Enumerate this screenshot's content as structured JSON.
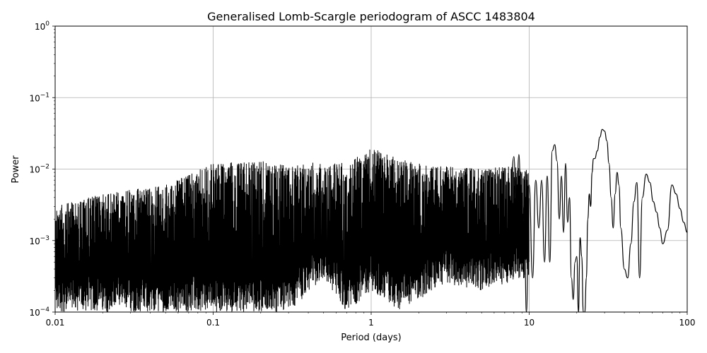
{
  "chart_data": {
    "type": "line",
    "title": "Generalised Lomb-Scargle periodogram of ASCC 1483804",
    "xlabel": "Period (days)",
    "ylabel": "Power",
    "xscale": "log",
    "yscale": "log",
    "xlim": [
      0.01,
      100
    ],
    "ylim": [
      0.0001,
      1
    ],
    "grid": true,
    "x_ticks": [
      {
        "value": 0.01,
        "label": "0.01"
      },
      {
        "value": 0.1,
        "label": "0.1"
      },
      {
        "value": 1,
        "label": "1"
      },
      {
        "value": 10,
        "label": "10"
      },
      {
        "value": 100,
        "label": "100"
      }
    ],
    "y_ticks": [
      {
        "value": 0.0001,
        "base": "10",
        "exp": "−4"
      },
      {
        "value": 0.001,
        "base": "10",
        "exp": "−3"
      },
      {
        "value": 0.01,
        "base": "10",
        "exp": "−2"
      },
      {
        "value": 0.1,
        "base": "10",
        "exp": "−1"
      },
      {
        "value": 1,
        "base": "10",
        "exp": "0"
      }
    ],
    "series": [
      {
        "color": "#000000",
        "noise_envelope": {
          "x": [
            0.01,
            0.02,
            0.05,
            0.1,
            0.2,
            0.3,
            0.5,
            0.7,
            1.0,
            1.5,
            2.0,
            3.0,
            5.0,
            7.0,
            10.0
          ],
          "peak": [
            0.003,
            0.0045,
            0.006,
            0.012,
            0.013,
            0.011,
            0.013,
            0.012,
            0.02,
            0.014,
            0.012,
            0.011,
            0.01,
            0.011,
            0.01
          ],
          "floor": [
            0.0001,
            0.0001,
            0.0001,
            0.0001,
            0.0001,
            0.0001,
            0.0003,
            0.0001,
            0.0002,
            0.0001,
            0.00015,
            0.00025,
            0.0002,
            0.00025,
            0.0003
          ]
        },
        "x": [
          7.5,
          8.0,
          8.3,
          8.6,
          9.0,
          9.3,
          9.6,
          10.0,
          10.5,
          11.0,
          11.5,
          12.0,
          12.5,
          13.0,
          13.5,
          14.0,
          14.5,
          15.0,
          15.5,
          16.0,
          16.5,
          17.0,
          17.5,
          18.0,
          18.5,
          19.0,
          19.5,
          20.0,
          20.5,
          21.0,
          21.5,
          22.0,
          22.5,
          23.0,
          23.5,
          24.0,
          24.5,
          25.0,
          25.5,
          26.0,
          27.0,
          28.0,
          29.0,
          30.0,
          31.0,
          32.0,
          33.0,
          34.0,
          35.0,
          36.0,
          37.0,
          38.0,
          40.0,
          42.0,
          44.0,
          46.0,
          48.0,
          50.0,
          52.0,
          55.0,
          58.0,
          61.0,
          64.0,
          67.0,
          70.0,
          75.0,
          80.0,
          85.0,
          90.0,
          95.0,
          100.0
        ],
        "y": [
          0.002,
          0.015,
          0.0018,
          0.016,
          0.0004,
          0.003,
          0.0001,
          0.006,
          0.0003,
          0.007,
          0.0015,
          0.007,
          0.0005,
          0.008,
          0.0005,
          0.018,
          0.022,
          0.013,
          0.002,
          0.008,
          0.0013,
          0.012,
          0.0018,
          0.004,
          0.0003,
          0.00015,
          0.0005,
          0.0006,
          0.0001,
          0.0011,
          0.0006,
          0.0001,
          0.0001,
          0.0003,
          0.002,
          0.0045,
          0.003,
          0.009,
          0.014,
          0.014,
          0.018,
          0.028,
          0.036,
          0.034,
          0.025,
          0.012,
          0.004,
          0.0015,
          0.0045,
          0.009,
          0.006,
          0.0015,
          0.0004,
          0.0003,
          0.0009,
          0.0035,
          0.0065,
          0.0003,
          0.004,
          0.0085,
          0.0065,
          0.0035,
          0.0025,
          0.0015,
          0.0009,
          0.0014,
          0.006,
          0.0045,
          0.0028,
          0.0018,
          0.0013
        ]
      }
    ]
  }
}
